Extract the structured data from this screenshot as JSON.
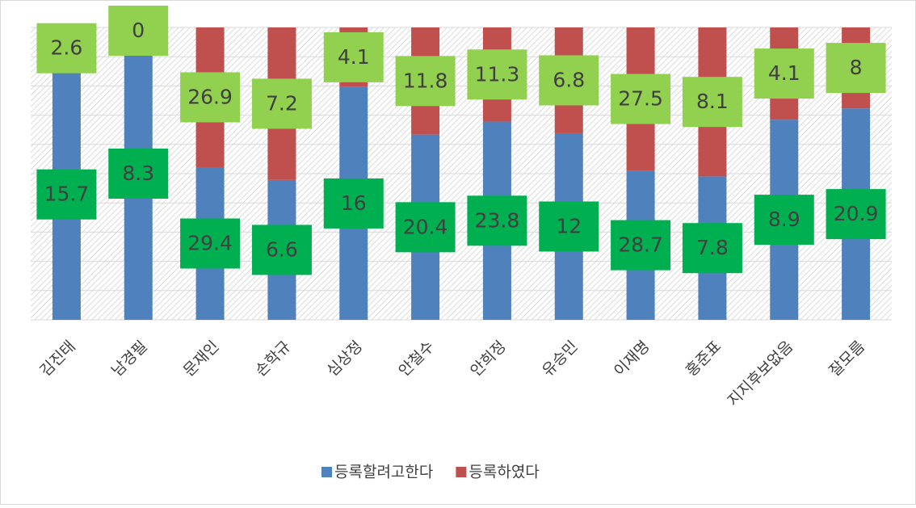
{
  "chart_data": {
    "type": "bar",
    "stacking": "percent",
    "categories": [
      "김진태",
      "남경필",
      "문재인",
      "손학규",
      "심상정",
      "안철수",
      "안희정",
      "유승민",
      "이재명",
      "홍준표",
      "지지후보없음",
      "잘모름"
    ],
    "series": [
      {
        "name": "등록할려고한다",
        "color": "#4f81bd",
        "label_color": "#00b050",
        "values": [
          15.7,
          8.3,
          29.4,
          6.6,
          16,
          20.4,
          23.8,
          12,
          28.7,
          7.8,
          8.9,
          20.9
        ]
      },
      {
        "name": "등록하였다",
        "color": "#c0504d",
        "label_color": "#92d050",
        "values": [
          2.6,
          0,
          26.9,
          7.2,
          4.1,
          11.8,
          11.3,
          6.8,
          27.5,
          8.1,
          4.1,
          8
        ]
      }
    ],
    "ylim": [
      0,
      100
    ],
    "yticks": [
      0,
      10,
      20,
      30,
      40,
      50,
      60,
      70,
      80,
      90,
      100
    ],
    "grid": true,
    "legend": "bottom"
  }
}
